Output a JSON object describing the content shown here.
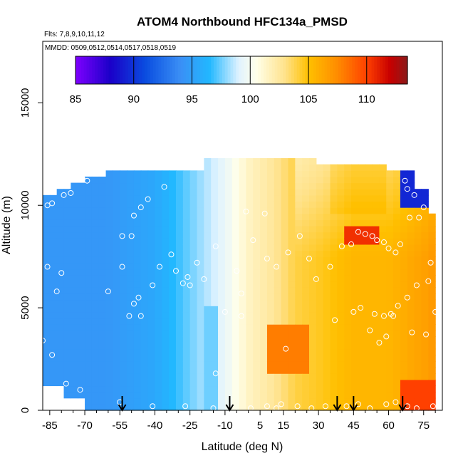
{
  "chart_data": {
    "type": "heatmap",
    "title": "ATOM4 Northbound HFC134a_PMSD",
    "subtitle_flights": "Flts: 7,8,9,10,11,12",
    "subtitle_dates": "MMDD: 0509,0512,0514,0517,0518,0519",
    "xlabel": "Latitude (deg N)",
    "ylabel": "Altitude (m)",
    "xlim": [
      -88,
      83
    ],
    "ylim": [
      0,
      18000
    ],
    "x_ticks": [
      -85,
      -70,
      -55,
      -40,
      -25,
      -10,
      5,
      15,
      30,
      45,
      60,
      75
    ],
    "x_minor_ticks": [
      -80,
      -75,
      -65,
      -60,
      -50,
      -45,
      -35,
      -30,
      -20,
      -15,
      -5,
      0,
      10,
      20,
      25,
      35,
      40,
      50,
      55,
      65,
      70,
      80
    ],
    "y_ticks": [
      0,
      5000,
      10000,
      15000
    ],
    "colorbar": {
      "min": 85,
      "max": 113.5,
      "ticks": [
        85,
        90,
        95,
        100,
        105,
        110
      ],
      "stops": [
        {
          "v": 85,
          "c": "#7f00ff"
        },
        {
          "v": 88,
          "c": "#1a00c8"
        },
        {
          "v": 91,
          "c": "#0a4de0"
        },
        {
          "v": 94,
          "c": "#3a8ff5"
        },
        {
          "v": 96.5,
          "c": "#22b8ff"
        },
        {
          "v": 99,
          "c": "#dff2ff"
        },
        {
          "v": 100.5,
          "c": "#ffffea"
        },
        {
          "v": 103,
          "c": "#ffe28a"
        },
        {
          "v": 105,
          "c": "#ffc000"
        },
        {
          "v": 107.5,
          "c": "#ff8c00"
        },
        {
          "v": 110,
          "c": "#ff4000"
        },
        {
          "v": 112,
          "c": "#c80000"
        },
        {
          "v": 113.5,
          "c": "#8b1a1a"
        }
      ]
    },
    "field": {
      "lat_edges": [
        -88,
        80
      ],
      "alt_max": 12200,
      "lat_profile": [
        {
          "lat": -86,
          "v": 94.5
        },
        {
          "lat": -60,
          "v": 94.5
        },
        {
          "lat": -40,
          "v": 95.5
        },
        {
          "lat": -25,
          "v": 97.5
        },
        {
          "lat": -10,
          "v": 99.5
        },
        {
          "lat": 0,
          "v": 101.5
        },
        {
          "lat": 10,
          "v": 102.5
        },
        {
          "lat": 20,
          "v": 104
        },
        {
          "lat": 30,
          "v": 104.5
        },
        {
          "lat": 45,
          "v": 105.5
        },
        {
          "lat": 60,
          "v": 105.5
        },
        {
          "lat": 75,
          "v": 106.5
        },
        {
          "lat": 80,
          "v": 107
        }
      ]
    },
    "flight_markers_lat": [
      -54,
      -8,
      38,
      45,
      66
    ],
    "sample_points": [
      [
        -86,
        10000
      ],
      [
        -84,
        10100
      ],
      [
        -79,
        10500
      ],
      [
        -76,
        10600
      ],
      [
        -71,
        11300
      ],
      [
        -69,
        11200
      ],
      [
        -66,
        11600
      ],
      [
        -49,
        9500
      ],
      [
        -46,
        9900
      ],
      [
        -43,
        10300
      ],
      [
        -36,
        10900
      ],
      [
        -54,
        8500
      ],
      [
        -50,
        8500
      ],
      [
        -33,
        7600
      ],
      [
        -38,
        7000
      ],
      [
        -31,
        6800
      ],
      [
        -26,
        6500
      ],
      [
        -22,
        7200
      ],
      [
        -80,
        6700
      ],
      [
        -86,
        7000
      ],
      [
        -82,
        5800
      ],
      [
        -60,
        5800
      ],
      [
        -54,
        7000
      ],
      [
        -47,
        5500
      ],
      [
        -41,
        6100
      ],
      [
        -28,
        6200
      ],
      [
        -25,
        6100
      ],
      [
        -49,
        5200
      ],
      [
        -51,
        4600
      ],
      [
        -46,
        4600
      ],
      [
        -19,
        6400
      ],
      [
        -14,
        8000
      ],
      [
        -5,
        6800
      ],
      [
        -3,
        5700
      ],
      [
        -10,
        4800
      ],
      [
        -3,
        4600
      ],
      [
        -1,
        9700
      ],
      [
        2,
        8300
      ],
      [
        7,
        9600
      ],
      [
        8,
        7400
      ],
      [
        12,
        7000
      ],
      [
        17,
        7700
      ],
      [
        22,
        8500
      ],
      [
        26,
        7400
      ],
      [
        29,
        6400
      ],
      [
        35,
        7000
      ],
      [
        40,
        8000
      ],
      [
        44,
        8100
      ],
      [
        47,
        8700
      ],
      [
        50,
        8600
      ],
      [
        53,
        8500
      ],
      [
        55,
        8300
      ],
      [
        58,
        8200
      ],
      [
        60,
        7900
      ],
      [
        63,
        7700
      ],
      [
        65,
        8100
      ],
      [
        69,
        9400
      ],
      [
        73,
        9400
      ],
      [
        67,
        11200
      ],
      [
        68,
        10800
      ],
      [
        71,
        10500
      ],
      [
        75,
        9900
      ],
      [
        79,
        9800
      ],
      [
        78,
        7200
      ],
      [
        77,
        6300
      ],
      [
        72,
        6100
      ],
      [
        68,
        5500
      ],
      [
        64,
        5100
      ],
      [
        62,
        4600
      ],
      [
        61,
        4700
      ],
      [
        58,
        4600
      ],
      [
        54,
        4700
      ],
      [
        48,
        5000
      ],
      [
        45,
        4800
      ],
      [
        37,
        4400
      ],
      [
        52,
        3900
      ],
      [
        59,
        3600
      ],
      [
        70,
        3800
      ],
      [
        76,
        3700
      ],
      [
        80,
        4800
      ],
      [
        56,
        3300
      ],
      [
        -88,
        3400
      ],
      [
        -78,
        1300
      ],
      [
        -84,
        2700
      ],
      [
        -55,
        400
      ],
      [
        -41,
        200
      ],
      [
        -27,
        200
      ],
      [
        -15,
        100
      ],
      [
        1,
        100
      ],
      [
        8,
        200
      ],
      [
        14,
        300
      ],
      [
        21,
        200
      ],
      [
        27,
        100
      ],
      [
        33,
        200
      ],
      [
        42,
        200
      ],
      [
        47,
        300
      ],
      [
        52,
        100
      ],
      [
        59,
        300
      ],
      [
        63,
        400
      ],
      [
        68,
        200
      ],
      [
        72,
        100
      ],
      [
        79,
        200
      ],
      [
        16,
        3000
      ],
      [
        -14,
        1800
      ],
      [
        12,
        100
      ],
      [
        -72,
        1000
      ]
    ]
  }
}
